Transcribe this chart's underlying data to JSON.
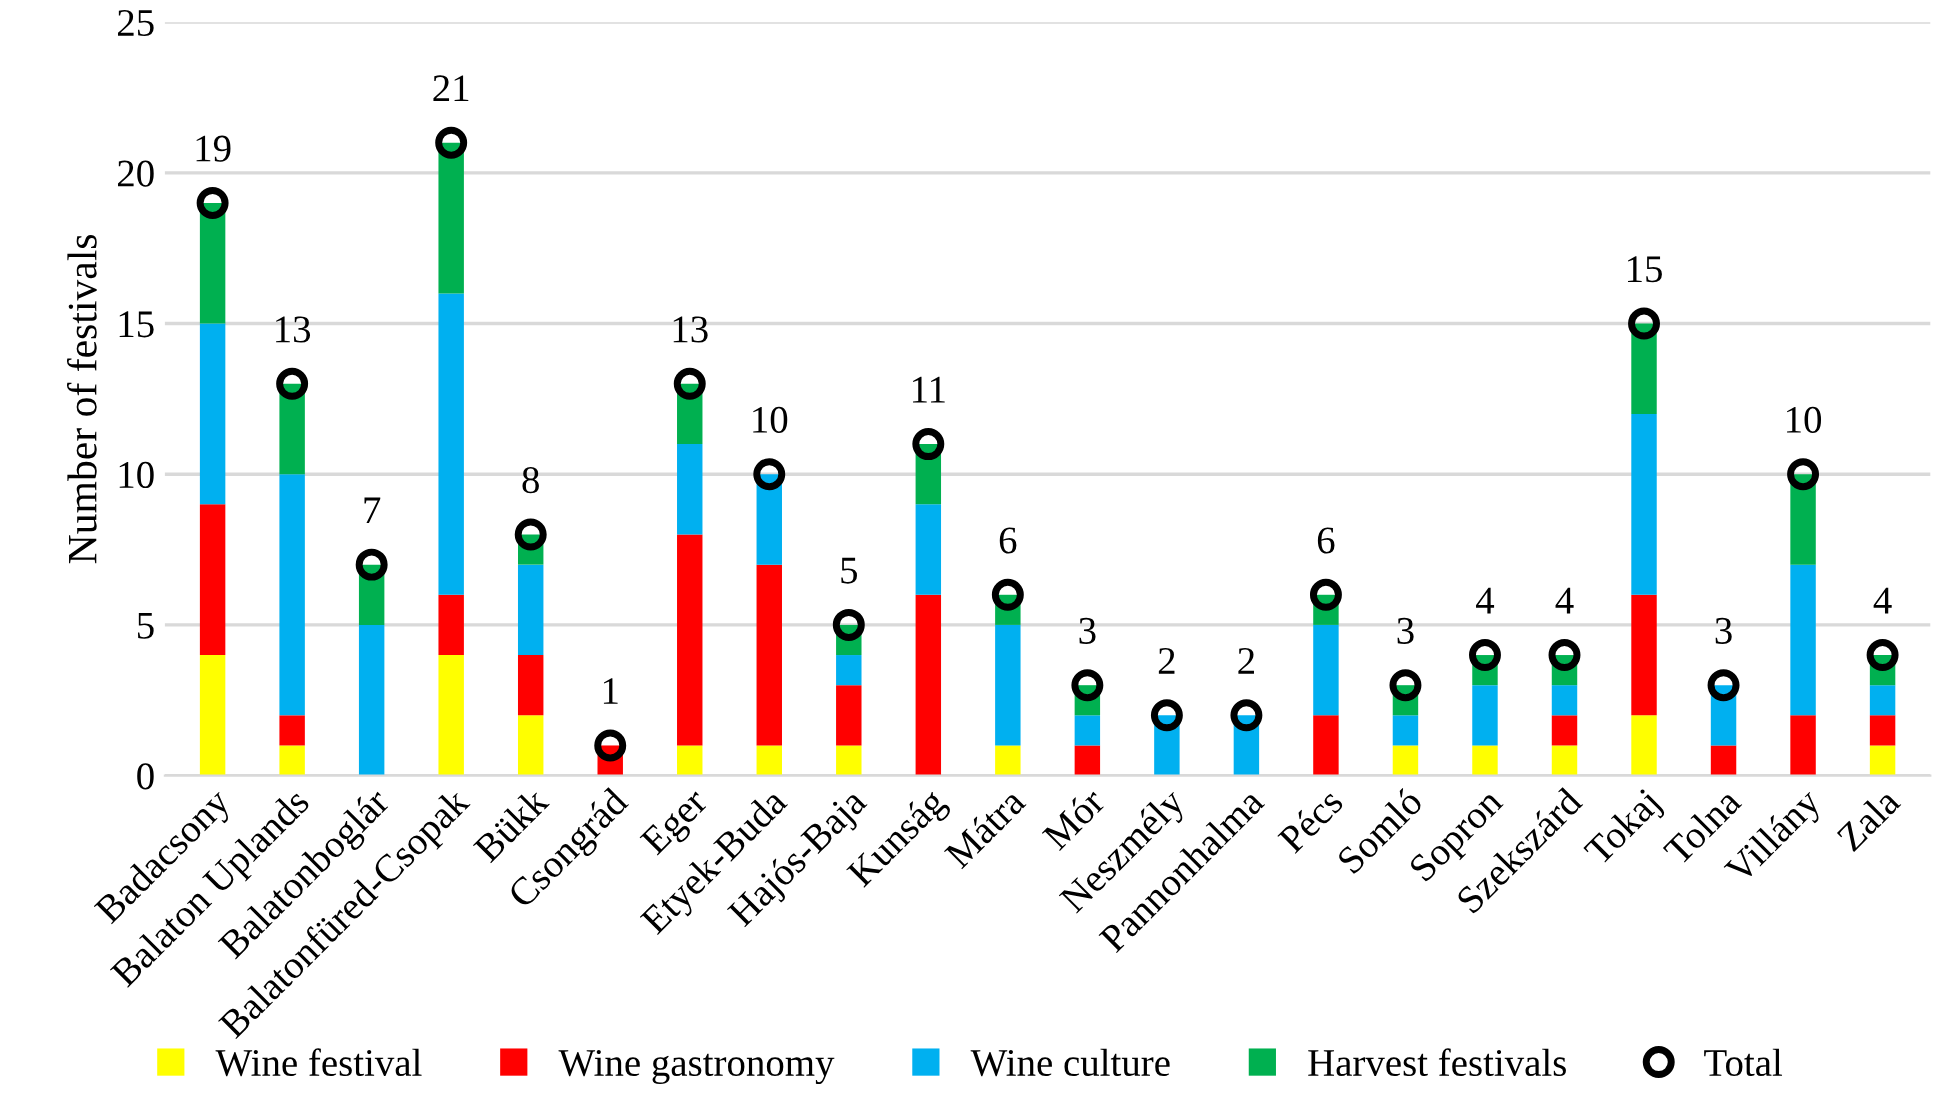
{
  "chart_data": {
    "type": "bar",
    "stacked": true,
    "ylabel": "Number of festivals",
    "categories": [
      "Badacsony",
      "Balaton Uplands",
      "Balatonboglár",
      "Balatonfüred-Csopak",
      "Bükk",
      "Csongrád",
      "Eger",
      "Etyek-Buda",
      "Hajós-Baja",
      "Kunság",
      "Mátra",
      "Mór",
      "Neszmély",
      "Pannonhalma",
      "Pécs",
      "Somló",
      "Sopron",
      "Szekszárd",
      "Tokaj",
      "Tolna",
      "Villány",
      "Zala"
    ],
    "series": [
      {
        "name": "Wine festival",
        "color": "#ffff00",
        "values": [
          4,
          1,
          0,
          4,
          2,
          0,
          1,
          1,
          1,
          0,
          1,
          0,
          0,
          0,
          0,
          1,
          1,
          1,
          2,
          0,
          0,
          1
        ]
      },
      {
        "name": "Wine gastronomy",
        "color": "#ff0000",
        "values": [
          5,
          1,
          0,
          2,
          2,
          1,
          7,
          6,
          2,
          6,
          0,
          1,
          0,
          0,
          2,
          0,
          0,
          1,
          4,
          1,
          2,
          1
        ]
      },
      {
        "name": "Wine culture",
        "color": "#00b0f0",
        "values": [
          6,
          8,
          5,
          10,
          3,
          0,
          3,
          3,
          1,
          3,
          4,
          1,
          2,
          2,
          3,
          1,
          2,
          1,
          6,
          2,
          5,
          1
        ]
      },
      {
        "name": "Harvest festivals",
        "color": "#00b050",
        "values": [
          4,
          3,
          2,
          5,
          1,
          0,
          2,
          0,
          1,
          2,
          1,
          1,
          0,
          0,
          1,
          1,
          1,
          1,
          3,
          0,
          3,
          1
        ]
      },
      {
        "name": "Total",
        "type": "scatter",
        "marker": "circle",
        "color": "#000000",
        "values": [
          19,
          13,
          7,
          21,
          8,
          1,
          13,
          10,
          5,
          11,
          6,
          3,
          2,
          2,
          6,
          3,
          4,
          4,
          15,
          3,
          10,
          4
        ],
        "data_labels": true
      }
    ],
    "ylim": [
      0,
      25
    ],
    "yticks": [
      0,
      5,
      10,
      15,
      20,
      25
    ],
    "grid": "y",
    "legend": "bottom"
  }
}
